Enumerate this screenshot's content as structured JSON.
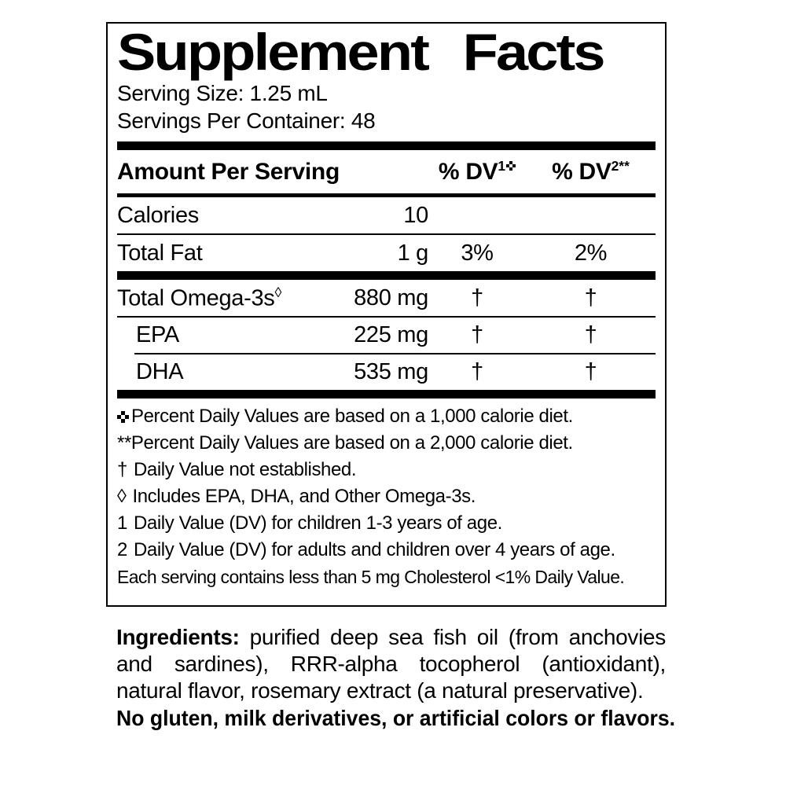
{
  "panel": {
    "title": "Supplement Facts",
    "serving_size": "Serving Size: 1.25 mL",
    "servings_per_container": "Servings Per Container: 48",
    "columns": {
      "amount_label": "Amount Per Serving",
      "dv1_label": "% DV",
      "dv1_sup": "1",
      "dv1_sup_icon": "open-centre-cross",
      "dv2_label": "% DV",
      "dv2_sup": "2**"
    },
    "rows": [
      {
        "name": "Calories",
        "amount": "10",
        "dv1": "",
        "dv2": ""
      },
      {
        "name": "Total Fat",
        "amount": "1 g",
        "dv1": "3%",
        "dv2": "2%"
      },
      {
        "name": "Total Omega-3s",
        "name_sup": "◊",
        "amount": "880 mg",
        "dv1": "†",
        "dv2": "†"
      },
      {
        "name": "EPA",
        "amount": "225 mg",
        "dv1": "†",
        "dv2": "†"
      },
      {
        "name": "DHA",
        "amount": "535 mg",
        "dv1": "†",
        "dv2": "†"
      }
    ],
    "footnotes": [
      {
        "marker_icon": "open-centre-cross",
        "text": "Percent Daily Values are based on a 1,000 calorie diet."
      },
      {
        "marker": "**",
        "text": "Percent Daily Values are based on a 2,000 calorie diet."
      },
      {
        "marker": "†",
        "text": "Daily Value not established."
      },
      {
        "marker": "◊",
        "text": "Includes EPA, DHA, and Other Omega-3s."
      },
      {
        "marker": "1",
        "text": "Daily Value (DV) for children 1-3 years of age."
      },
      {
        "marker": "2",
        "text": "Daily Value (DV) for adults and children over 4 years of age."
      },
      {
        "marker": "",
        "text": "Each serving contains less than 5 mg Cholesterol <1% Daily Value."
      }
    ]
  },
  "ingredients": {
    "label": "Ingredients:",
    "text": " purified deep sea fish oil (from anchovies and sardines), RRR-alpha tocopherol (antioxidant), natural flavor, rosemary extract (a natural preservative).",
    "no_claim": "No gluten, milk derivatives, or artificial colors or flavors."
  },
  "colors": {
    "text": "#000000",
    "background": "#ffffff"
  }
}
